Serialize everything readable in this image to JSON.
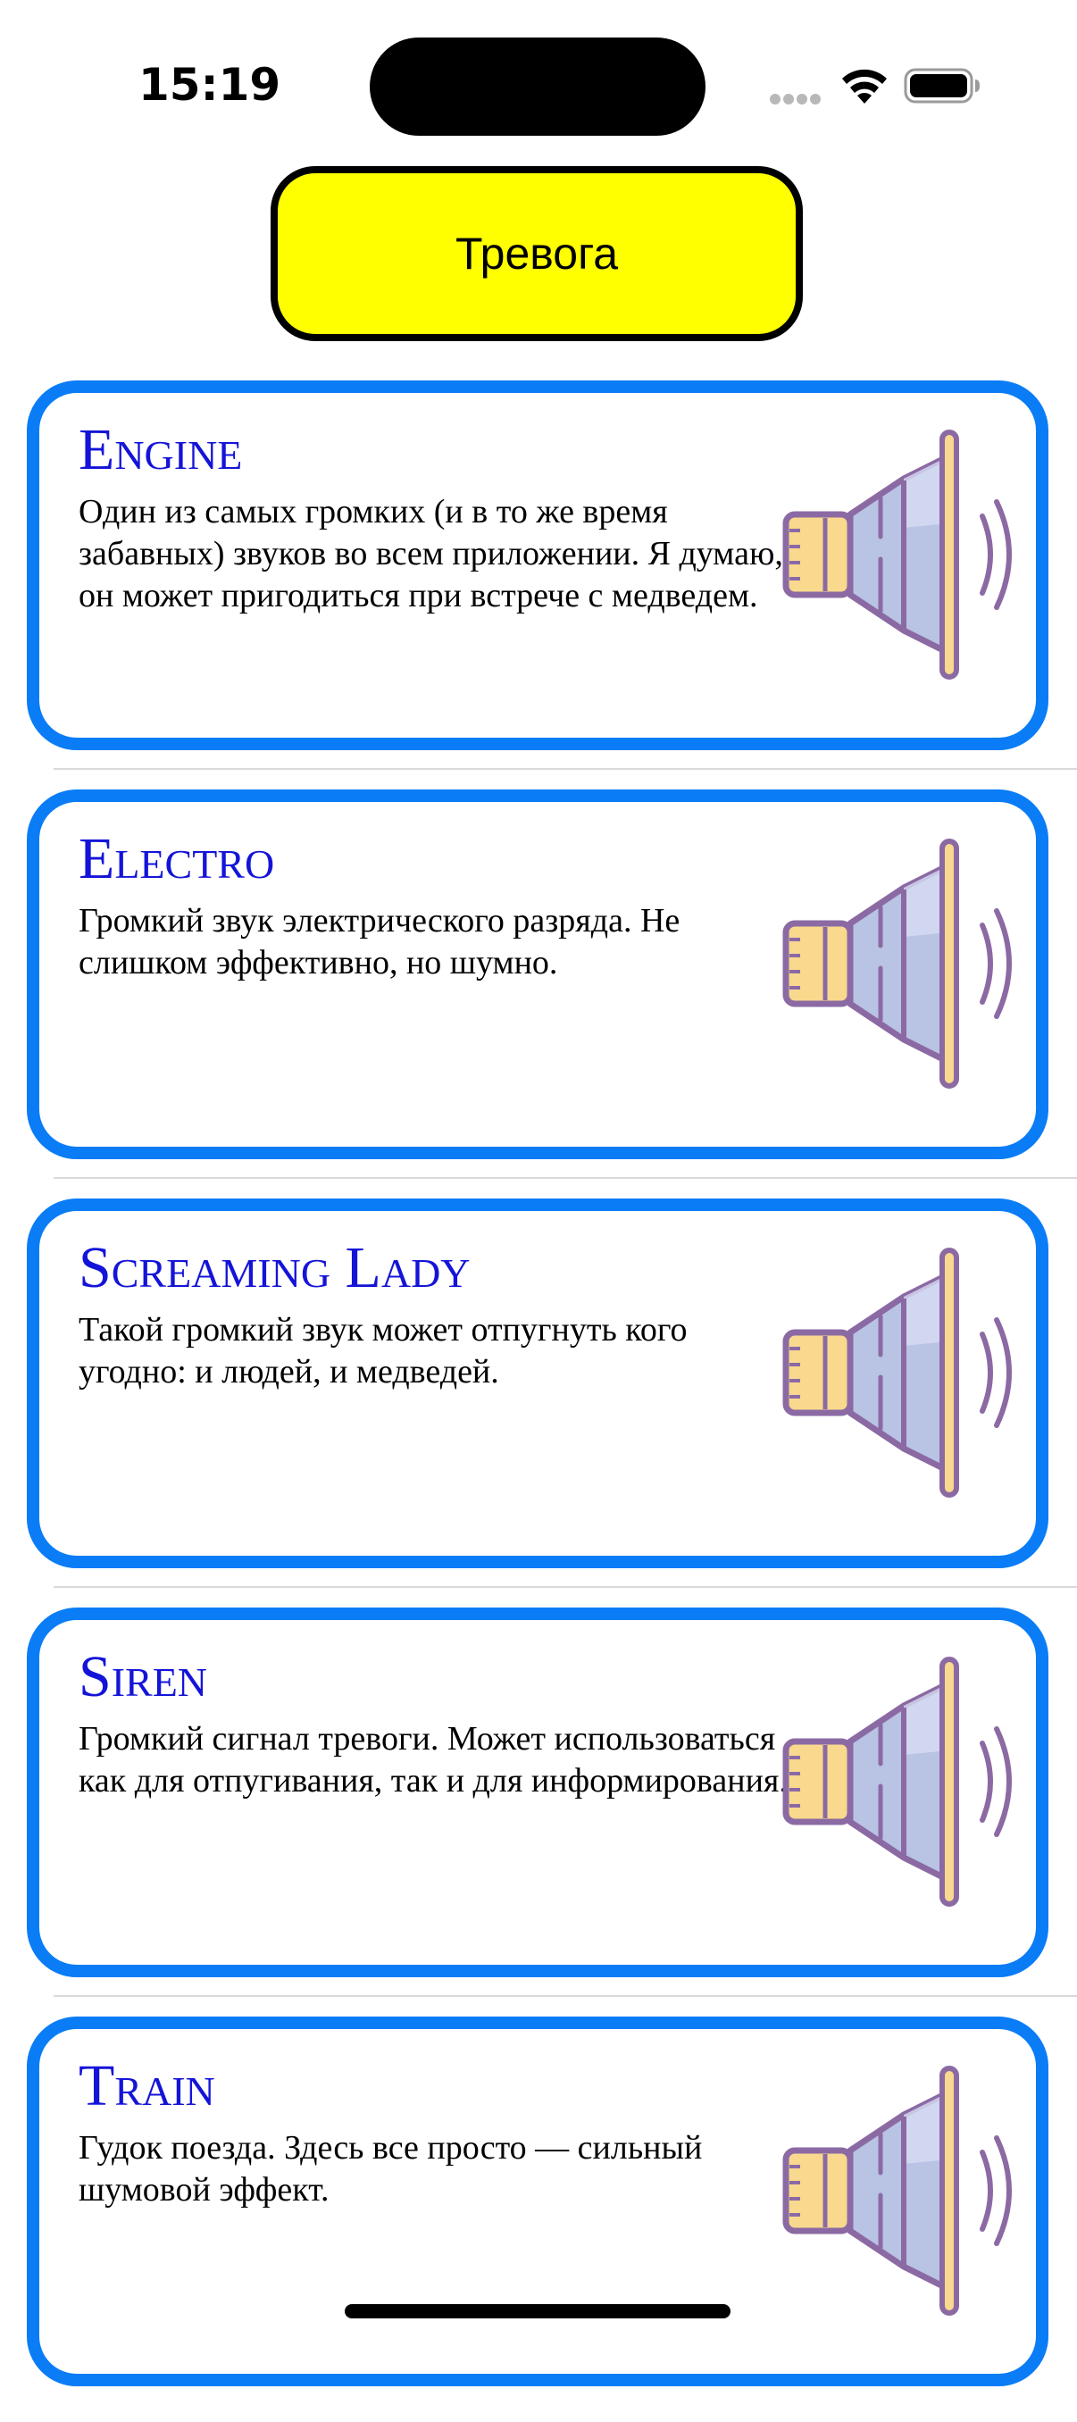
{
  "status_bar": {
    "time": "15:19"
  },
  "alarm_button": {
    "label": "Тревога",
    "background": "#ffff00"
  },
  "colors": {
    "card_border": "#0a7cf6",
    "title": "#1414d8"
  },
  "sounds": [
    {
      "title": "Engine",
      "description": "Один из самых громких (и в то же время забавных) звуков во всем приложении. Я думаю, он может пригодиться при встрече с медведем.",
      "icon": "speaker-icon"
    },
    {
      "title": "Electro",
      "description": "Громкий звук электрического разряда. Не слишком эффективно, но шумно.",
      "icon": "speaker-icon"
    },
    {
      "title": "Screaming Lady",
      "description": "Такой громкий звук может отпугнуть кого угодно: и людей, и медведей.",
      "icon": "speaker-icon"
    },
    {
      "title": "Siren",
      "description": "Громкий сигнал тревоги. Может использоваться как для отпугивания, так и для информирования.",
      "icon": "speaker-icon"
    },
    {
      "title": "Train",
      "description": "Гудок поезда. Здесь все просто — сильный шумовой эффект.",
      "icon": "speaker-icon"
    }
  ]
}
